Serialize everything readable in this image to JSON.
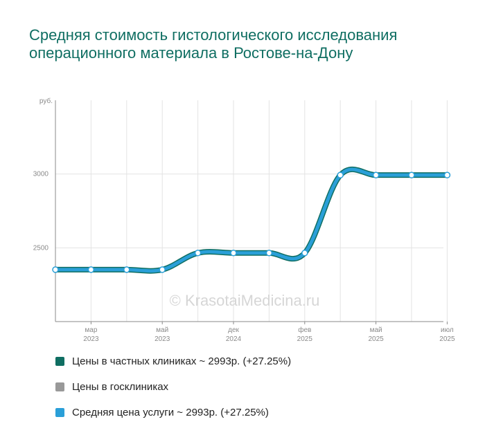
{
  "title": "Средняя стоимость гистологического исследования операционного материала в Ростове-на-Дону",
  "watermark": "© KrasotaiMedicina.ru",
  "colors": {
    "private": "#0f6e62",
    "public": "#999999",
    "average": "#2a9fd8",
    "grid": "#e3e3e3",
    "axis": "#8a8a8a"
  },
  "legend": [
    {
      "label": "Цены в частных клиниках ~ 2993р. (+27.25%)",
      "color": "#0f6e62"
    },
    {
      "label": "Цены в госклиниках",
      "color": "#999999"
    },
    {
      "label": "Средняя цена услуги ~ 2993р. (+27.25%)",
      "color": "#2a9fd8"
    }
  ],
  "chart_data": {
    "type": "line",
    "ylabel": "руб.",
    "ylim": [
      2000,
      3500
    ],
    "yticks": [
      2500,
      3000
    ],
    "x_ticks": [
      {
        "month": "мар",
        "year": "2023"
      },
      {
        "month": "май",
        "year": "2023"
      },
      {
        "month": "дек",
        "year": "2024"
      },
      {
        "month": "фев",
        "year": "2025"
      },
      {
        "month": "май",
        "year": "2025"
      },
      {
        "month": "июл",
        "year": "2025"
      }
    ],
    "series": [
      {
        "name": "Цены в частных клиниках",
        "values": [
          2352,
          2352,
          2352,
          2352,
          2465,
          2465,
          2465,
          2465,
          2993,
          2993,
          2993,
          2993
        ]
      },
      {
        "name": "Средняя цена услуги",
        "values": [
          2352,
          2352,
          2352,
          2352,
          2465,
          2465,
          2465,
          2465,
          2993,
          2993,
          2993,
          2993
        ]
      }
    ]
  }
}
